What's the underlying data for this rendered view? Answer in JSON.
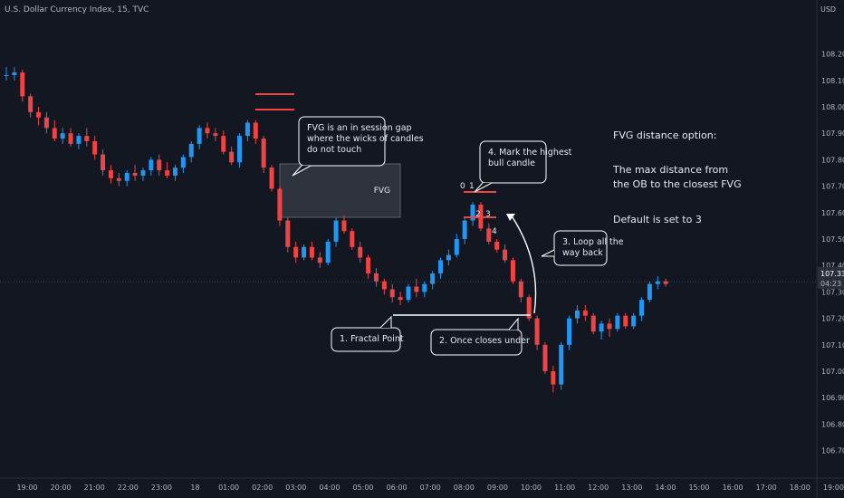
{
  "header": {
    "title": "U.S. Dollar Currency Index, 15, TVC",
    "currency": "USD"
  },
  "price_tag": {
    "price": "107.338",
    "countdown": "04:23"
  },
  "chart_data": {
    "type": "candlestick",
    "title": "U.S. Dollar Currency Index, 15, TVC",
    "y_axis": {
      "unit": "USD",
      "ticks": [
        "108.200",
        "108.100",
        "108.000",
        "107.900",
        "107.800",
        "107.700",
        "107.600",
        "107.500",
        "107.400",
        "107.300",
        "107.200",
        "107.100",
        "107.000",
        "106.900",
        "106.800",
        "106.700"
      ]
    },
    "x_axis": {
      "ticks": [
        "19:00",
        "20:00",
        "21:00",
        "22:00",
        "23:00",
        "18",
        "01:00",
        "02:00",
        "03:00",
        "04:00",
        "05:00",
        "06:00",
        "07:00",
        "08:00",
        "09:00",
        "10:00",
        "11:00",
        "12:00",
        "13:00",
        "14:00",
        "15:00",
        "16:00",
        "17:00",
        "18:00",
        "19:00"
      ]
    },
    "last_price": 107.338,
    "bull_color": "#2196f3",
    "bear_color": "#ef4444",
    "candles": [
      [
        108.12,
        108.15,
        108.1,
        108.12
      ],
      [
        108.12,
        108.15,
        108.1,
        108.13
      ],
      [
        108.13,
        108.14,
        108.02,
        108.04
      ],
      [
        108.04,
        108.05,
        107.96,
        107.98
      ],
      [
        107.98,
        108.0,
        107.93,
        107.96
      ],
      [
        107.96,
        107.98,
        107.9,
        107.92
      ],
      [
        107.92,
        107.95,
        107.87,
        107.88
      ],
      [
        107.88,
        107.92,
        107.86,
        107.9
      ],
      [
        107.9,
        107.92,
        107.85,
        107.86
      ],
      [
        107.86,
        107.9,
        107.84,
        107.89
      ],
      [
        107.89,
        107.92,
        107.85,
        107.87
      ],
      [
        107.87,
        107.89,
        107.8,
        107.82
      ],
      [
        107.82,
        107.84,
        107.74,
        107.76
      ],
      [
        107.76,
        107.78,
        107.71,
        107.73
      ],
      [
        107.73,
        107.75,
        107.7,
        107.72
      ],
      [
        107.72,
        107.76,
        107.7,
        107.75
      ],
      [
        107.75,
        107.78,
        107.72,
        107.74
      ],
      [
        107.74,
        107.77,
        107.72,
        107.76
      ],
      [
        107.76,
        107.81,
        107.74,
        107.8
      ],
      [
        107.8,
        107.82,
        107.74,
        107.76
      ],
      [
        107.76,
        107.79,
        107.73,
        107.74
      ],
      [
        107.74,
        107.78,
        107.72,
        107.77
      ],
      [
        107.77,
        107.82,
        107.75,
        107.81
      ],
      [
        107.81,
        107.87,
        107.79,
        107.86
      ],
      [
        107.86,
        107.93,
        107.84,
        107.92
      ],
      [
        107.92,
        107.94,
        107.88,
        107.9
      ],
      [
        107.9,
        107.92,
        107.87,
        107.89
      ],
      [
        107.89,
        107.91,
        107.82,
        107.83
      ],
      [
        107.83,
        107.85,
        107.78,
        107.79
      ],
      [
        107.79,
        107.9,
        107.77,
        107.89
      ],
      [
        107.89,
        107.95,
        107.87,
        107.94
      ],
      [
        107.94,
        107.95,
        107.86,
        107.88
      ],
      [
        107.88,
        107.89,
        107.75,
        107.77
      ],
      [
        107.77,
        107.78,
        107.68,
        107.69
      ],
      [
        107.69,
        107.7,
        107.55,
        107.57
      ],
      [
        107.57,
        107.58,
        107.45,
        107.47
      ],
      [
        107.47,
        107.49,
        107.41,
        107.43
      ],
      [
        107.43,
        107.48,
        107.42,
        107.47
      ],
      [
        107.47,
        107.49,
        107.42,
        107.43
      ],
      [
        107.43,
        107.45,
        107.39,
        107.41
      ],
      [
        107.41,
        107.5,
        107.4,
        107.49
      ],
      [
        107.49,
        107.58,
        107.47,
        107.57
      ],
      [
        107.57,
        107.59,
        107.52,
        107.53
      ],
      [
        107.53,
        107.54,
        107.46,
        107.47
      ],
      [
        107.47,
        107.49,
        107.41,
        107.43
      ],
      [
        107.43,
        107.44,
        107.35,
        107.37
      ],
      [
        107.37,
        107.39,
        107.32,
        107.34
      ],
      [
        107.34,
        107.35,
        107.29,
        107.31
      ],
      [
        107.31,
        107.33,
        107.26,
        107.28
      ],
      [
        107.28,
        107.3,
        107.25,
        107.27
      ],
      [
        107.27,
        107.33,
        107.26,
        107.32
      ],
      [
        107.32,
        107.35,
        107.28,
        107.3
      ],
      [
        107.3,
        107.34,
        107.28,
        107.33
      ],
      [
        107.33,
        107.38,
        107.31,
        107.37
      ],
      [
        107.37,
        107.43,
        107.35,
        107.42
      ],
      [
        107.42,
        107.46,
        107.4,
        107.44
      ],
      [
        107.44,
        107.52,
        107.43,
        107.5
      ],
      [
        107.5,
        107.58,
        107.48,
        107.57
      ],
      [
        107.57,
        107.64,
        107.55,
        107.63
      ],
      [
        107.63,
        107.64,
        107.53,
        107.54
      ],
      [
        107.54,
        107.56,
        107.48,
        107.49
      ],
      [
        107.49,
        107.5,
        107.45,
        107.46
      ],
      [
        107.46,
        107.48,
        107.41,
        107.42
      ],
      [
        107.42,
        107.43,
        107.33,
        107.34
      ],
      [
        107.34,
        107.35,
        107.26,
        107.28
      ],
      [
        107.28,
        107.29,
        107.19,
        107.2
      ],
      [
        107.2,
        107.21,
        107.08,
        107.1
      ],
      [
        107.1,
        107.11,
        106.99,
        107.0
      ],
      [
        107.0,
        107.02,
        106.92,
        106.95
      ],
      [
        106.95,
        107.11,
        106.93,
        107.1
      ],
      [
        107.1,
        107.21,
        107.08,
        107.2
      ],
      [
        107.2,
        107.25,
        107.18,
        107.23
      ],
      [
        107.23,
        107.25,
        107.19,
        107.21
      ],
      [
        107.21,
        107.22,
        107.14,
        107.15
      ],
      [
        107.15,
        107.19,
        107.12,
        107.18
      ],
      [
        107.18,
        107.2,
        107.13,
        107.16
      ],
      [
        107.16,
        107.22,
        107.15,
        107.21
      ],
      [
        107.21,
        107.22,
        107.16,
        107.17
      ],
      [
        107.17,
        107.22,
        107.16,
        107.21
      ],
      [
        107.21,
        107.28,
        107.19,
        107.27
      ],
      [
        107.27,
        107.34,
        107.26,
        107.33
      ],
      [
        107.33,
        107.36,
        107.31,
        107.34
      ],
      [
        107.34,
        107.35,
        107.32,
        107.33
      ]
    ],
    "annotations": {
      "fvg_label": "FVG",
      "fvg_callout": [
        "FVG is an in session gap",
        "where the wicks of candles",
        "do not touch"
      ],
      "highest_bull_callout": [
        "4. Mark the highest",
        "bull candle"
      ],
      "loop_callout": [
        "3. Loop all the",
        "way back"
      ],
      "fractal_callout": "1. Fractal Point",
      "close_under_callout": "2. Once closes under",
      "numbers": [
        "0",
        "1",
        "2",
        "3",
        "4"
      ]
    }
  },
  "side_note": {
    "heading": "FVG distance option:",
    "line1": "The max distance from",
    "line2": "the OB to the closest FVG",
    "line3": "Default is set to 3"
  }
}
